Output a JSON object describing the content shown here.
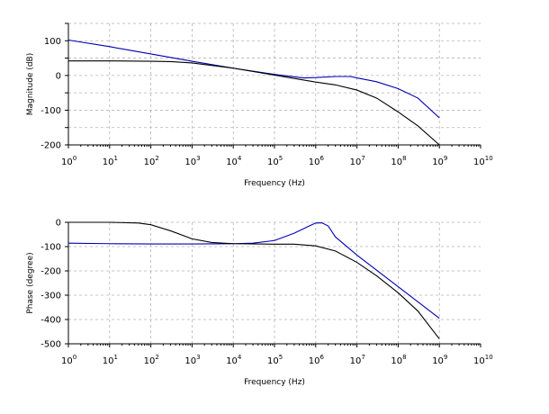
{
  "chart_data": [
    {
      "type": "line",
      "xlabel": "Frequency (Hz)",
      "ylabel": "Magnitude (dB)",
      "x_scale": "log",
      "xlim": [
        1,
        10000000000
      ],
      "ylim": [
        -200,
        150
      ],
      "grid": true,
      "x_ticks": [
        {
          "base": "10",
          "exp": "0"
        },
        {
          "base": "10",
          "exp": "1"
        },
        {
          "base": "10",
          "exp": "2"
        },
        {
          "base": "10",
          "exp": "3"
        },
        {
          "base": "10",
          "exp": "4"
        },
        {
          "base": "10",
          "exp": "5"
        },
        {
          "base": "10",
          "exp": "6"
        },
        {
          "base": "10",
          "exp": "7"
        },
        {
          "base": "10",
          "exp": "8"
        },
        {
          "base": "10",
          "exp": "9"
        },
        {
          "base": "10",
          "exp": "10"
        }
      ],
      "y_ticks": [
        100,
        0,
        -100,
        -200
      ],
      "series": [
        {
          "color": "#0000b4",
          "x": [
            1,
            10,
            100,
            1000,
            10000,
            100000,
            500000,
            1000000,
            3000000,
            7000000,
            10000000,
            30000000,
            100000000,
            300000000,
            1000000000
          ],
          "y": [
            102,
            83,
            62,
            41,
            21,
            3,
            -7,
            -6,
            -3,
            -3,
            -7,
            -18,
            -38,
            -65,
            -122
          ]
        },
        {
          "color": "#000000",
          "x": [
            1,
            10,
            100,
            300,
            1000,
            10000,
            100000,
            1000000,
            3000000,
            10000000,
            30000000,
            100000000,
            300000000,
            1000000000
          ],
          "y": [
            42,
            42,
            41,
            40,
            36,
            21,
            1,
            -19,
            -27,
            -42,
            -65,
            -105,
            -145,
            -200
          ]
        }
      ]
    },
    {
      "type": "line",
      "xlabel": "Frequency (Hz)",
      "ylabel": "Phase (degree)",
      "x_scale": "log",
      "xlim": [
        1,
        10000000000
      ],
      "ylim": [
        -500,
        0
      ],
      "grid": true,
      "x_ticks": [
        {
          "base": "10",
          "exp": "0"
        },
        {
          "base": "10",
          "exp": "1"
        },
        {
          "base": "10",
          "exp": "2"
        },
        {
          "base": "10",
          "exp": "3"
        },
        {
          "base": "10",
          "exp": "4"
        },
        {
          "base": "10",
          "exp": "5"
        },
        {
          "base": "10",
          "exp": "6"
        },
        {
          "base": "10",
          "exp": "7"
        },
        {
          "base": "10",
          "exp": "8"
        },
        {
          "base": "10",
          "exp": "9"
        },
        {
          "base": "10",
          "exp": "10"
        }
      ],
      "y_ticks": [
        0,
        -100,
        -200,
        -300,
        -400,
        -500
      ],
      "series": [
        {
          "color": "#0000b4",
          "x": [
            1,
            10,
            100,
            1000,
            10000,
            30000,
            100000,
            300000,
            700000,
            1000000,
            1400000,
            2000000,
            3000000,
            10000000,
            100000000,
            1000000000
          ],
          "y": [
            -86,
            -88,
            -89,
            -89,
            -88,
            -86,
            -75,
            -45,
            -15,
            -3,
            -2,
            -15,
            -60,
            -135,
            -265,
            -395
          ]
        },
        {
          "color": "#000000",
          "x": [
            1,
            10,
            50,
            100,
            300,
            1000,
            3000,
            10000,
            100000,
            300000,
            1000000,
            3000000,
            10000000,
            30000000,
            100000000,
            300000000,
            1000000000
          ],
          "y": [
            0,
            0,
            -3,
            -10,
            -35,
            -68,
            -83,
            -88,
            -90,
            -90,
            -97,
            -118,
            -165,
            -220,
            -290,
            -365,
            -480
          ]
        }
      ]
    }
  ]
}
